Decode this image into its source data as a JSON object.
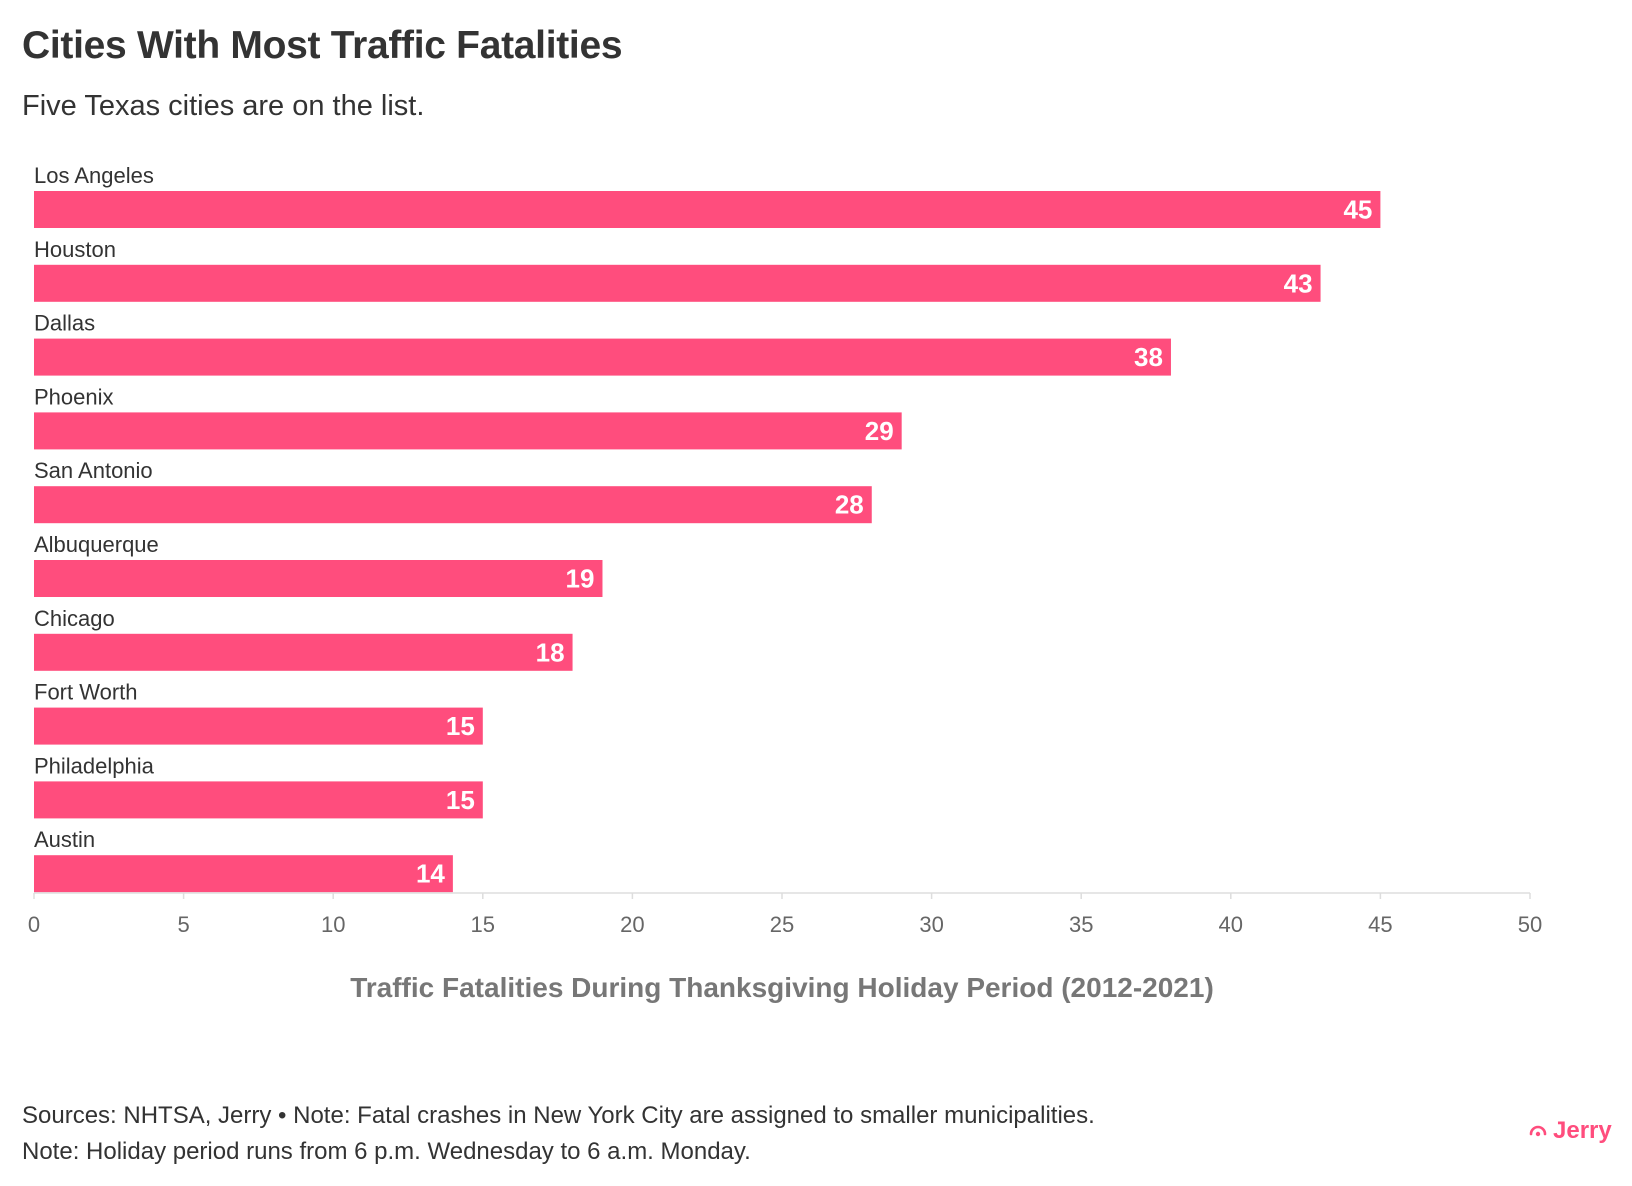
{
  "header": {
    "title": "Cities With Most Traffic Fatalities",
    "subtitle": "Five Texas cities are on the list."
  },
  "chart_data": {
    "type": "bar",
    "orientation": "horizontal",
    "categories": [
      "Los Angeles",
      "Houston",
      "Dallas",
      "Phoenix",
      "San Antonio",
      "Albuquerque",
      "Chicago",
      "Fort Worth",
      "Philadelphia",
      "Austin"
    ],
    "values": [
      45,
      43,
      38,
      29,
      28,
      19,
      18,
      15,
      15,
      14
    ],
    "xlim": [
      0,
      50
    ],
    "xticks": [
      0,
      5,
      10,
      15,
      20,
      25,
      30,
      35,
      40,
      45,
      50
    ],
    "xlabel": "Traffic Fatalities During Thanksgiving Holiday Period (2012-2021)",
    "ylabel": "",
    "grid": false,
    "data_labels": true
  },
  "footer": {
    "line1": "Sources: NHTSA, Jerry • Note: Fatal crashes in New York City are assigned to smaller municipalities.",
    "line2": "Note: Holiday period runs from 6 p.m. Wednesday to 6 a.m. Monday."
  },
  "brand": {
    "name": "Jerry",
    "icon": "jerry-logo-icon"
  },
  "colors": {
    "bar": "#FF4D7D",
    "brand": "#FF4D7D",
    "axis": "#dddddd"
  }
}
